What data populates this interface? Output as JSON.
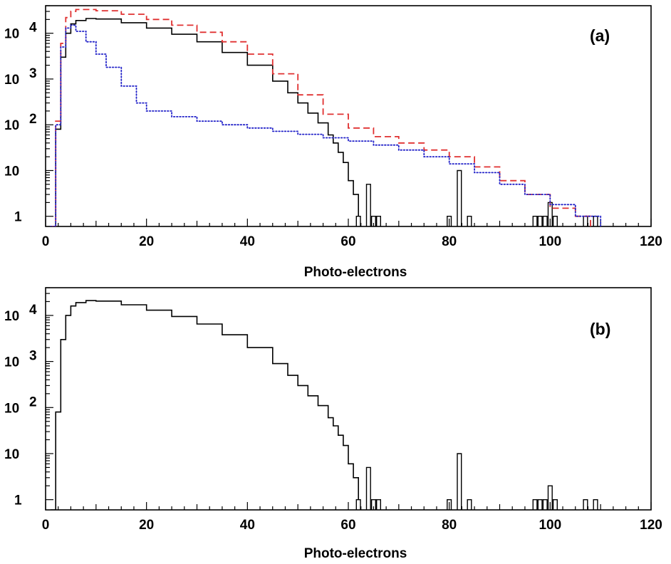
{
  "chart_data": [
    {
      "type": "line",
      "panel_label": "(a)",
      "xlabel": "Photo-electrons",
      "ylabel": "",
      "xlim": [
        0,
        120
      ],
      "ylim": [
        0.6,
        40000
      ],
      "yscale": "log",
      "grid": false,
      "x_ticks": [
        0,
        20,
        40,
        60,
        80,
        100,
        120
      ],
      "x_tick_labels": [
        "0",
        "20",
        "40",
        "60",
        "80",
        "100",
        "120"
      ],
      "y_ticks": [
        1,
        10,
        100,
        1000,
        10000
      ],
      "y_tick_labels": [
        {
          "base": "1",
          "exp": ""
        },
        {
          "base": "10",
          "exp": ""
        },
        {
          "base": "10",
          "exp": "2"
        },
        {
          "base": "10",
          "exp": "3"
        },
        {
          "base": "10",
          "exp": "4"
        }
      ],
      "series": [
        {
          "style": "solid",
          "color": "#000000",
          "x": [
            1,
            2,
            3,
            4,
            5,
            6,
            8,
            10,
            15,
            20,
            25,
            30,
            35,
            40,
            45,
            48,
            50,
            52,
            54,
            56,
            57,
            58,
            59,
            60,
            61,
            62
          ],
          "y": [
            0.6,
            80,
            3000,
            10000,
            16000,
            19000,
            21000,
            20500,
            17000,
            13000,
            9500,
            6500,
            3800,
            2000,
            900,
            500,
            300,
            180,
            110,
            60,
            40,
            25,
            15,
            6,
            3,
            1
          ],
          "spikes": [
            {
              "x": 62,
              "y": 1
            },
            {
              "x": 64,
              "y": 5
            },
            {
              "x": 65,
              "y": 1
            },
            {
              "x": 66,
              "y": 1
            },
            {
              "x": 80,
              "y": 1
            },
            {
              "x": 82,
              "y": 10
            },
            {
              "x": 84,
              "y": 1
            },
            {
              "x": 97,
              "y": 1
            },
            {
              "x": 98,
              "y": 1
            },
            {
              "x": 99,
              "y": 1
            },
            {
              "x": 100,
              "y": 2
            },
            {
              "x": 101,
              "y": 1
            },
            {
              "x": 107,
              "y": 1
            },
            {
              "x": 109,
              "y": 1
            }
          ]
        },
        {
          "style": "dashed",
          "color": "#e03030",
          "x": [
            1,
            2,
            3,
            4,
            5,
            6,
            8,
            10,
            15,
            20,
            25,
            30,
            35,
            40,
            45,
            50,
            55,
            60,
            65,
            70,
            75,
            80,
            85,
            90,
            95,
            100,
            105,
            108
          ],
          "y": [
            0.6,
            120,
            6000,
            22000,
            30000,
            33000,
            33000,
            31000,
            26000,
            20000,
            15000,
            10500,
            6500,
            3500,
            1300,
            450,
            170,
            85,
            55,
            40,
            28,
            20,
            12,
            6,
            3,
            1.5,
            1,
            0.6
          ]
        },
        {
          "style": "dotted",
          "color": "#2020c8",
          "x": [
            1,
            2,
            3,
            4,
            5,
            6,
            8,
            10,
            12,
            15,
            18,
            20,
            25,
            30,
            35,
            40,
            45,
            50,
            55,
            60,
            65,
            70,
            75,
            80,
            85,
            90,
            95,
            100,
            105,
            110
          ],
          "y": [
            0.6,
            100,
            5000,
            13000,
            15000,
            11000,
            6500,
            3500,
            1800,
            700,
            300,
            200,
            150,
            120,
            100,
            85,
            72,
            62,
            52,
            44,
            36,
            28,
            20,
            14,
            9,
            5,
            3,
            1.8,
            1,
            0.6
          ]
        }
      ]
    },
    {
      "type": "line",
      "panel_label": "(b)",
      "xlabel": "Photo-electrons",
      "ylabel": "",
      "xlim": [
        0,
        120
      ],
      "ylim": [
        0.6,
        40000
      ],
      "yscale": "log",
      "grid": false,
      "x_ticks": [
        0,
        20,
        40,
        60,
        80,
        100,
        120
      ],
      "x_tick_labels": [
        "0",
        "20",
        "40",
        "60",
        "80",
        "100",
        "120"
      ],
      "y_ticks": [
        1,
        10,
        100,
        1000,
        10000
      ],
      "y_tick_labels": [
        {
          "base": "1",
          "exp": ""
        },
        {
          "base": "10",
          "exp": ""
        },
        {
          "base": "10",
          "exp": "2"
        },
        {
          "base": "10",
          "exp": "3"
        },
        {
          "base": "10",
          "exp": "4"
        }
      ],
      "series": [
        {
          "style": "solid",
          "color": "#000000",
          "x": [
            1,
            2,
            3,
            4,
            5,
            6,
            8,
            10,
            15,
            20,
            25,
            30,
            35,
            40,
            45,
            48,
            50,
            52,
            54,
            56,
            57,
            58,
            59,
            60,
            61,
            62
          ],
          "y": [
            0.6,
            80,
            3000,
            10000,
            16000,
            19000,
            21000,
            20500,
            17000,
            13000,
            9500,
            6500,
            3800,
            2000,
            900,
            500,
            300,
            180,
            110,
            60,
            40,
            25,
            15,
            6,
            3,
            1
          ],
          "spikes": [
            {
              "x": 62,
              "y": 1
            },
            {
              "x": 64,
              "y": 5
            },
            {
              "x": 65,
              "y": 1
            },
            {
              "x": 66,
              "y": 1
            },
            {
              "x": 80,
              "y": 1
            },
            {
              "x": 82,
              "y": 10
            },
            {
              "x": 84,
              "y": 1
            },
            {
              "x": 97,
              "y": 1
            },
            {
              "x": 98,
              "y": 1
            },
            {
              "x": 99,
              "y": 1
            },
            {
              "x": 100,
              "y": 2
            },
            {
              "x": 101,
              "y": 1
            },
            {
              "x": 107,
              "y": 1
            },
            {
              "x": 109,
              "y": 1
            }
          ]
        }
      ]
    }
  ]
}
